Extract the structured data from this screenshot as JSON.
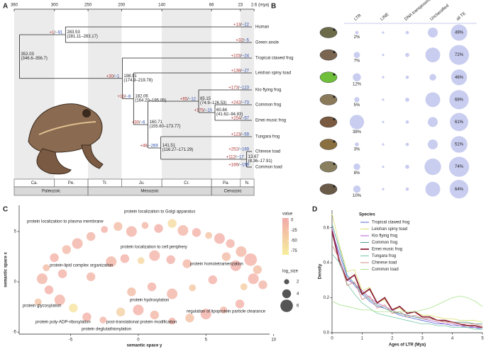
{
  "panel_labels": [
    "A",
    "B",
    "C",
    "D"
  ],
  "tree": {
    "time_ticks": [
      360,
      300,
      250,
      200,
      140,
      66,
      23,
      2.6
    ],
    "time_unit": "(mya)",
    "tips": [
      "Human",
      "Green anole",
      "Tropical clawed frog",
      "Leishan spiny toad",
      "Kio flying frog",
      "Common frog",
      "Emei music frog",
      "Tungara frog",
      "Chinese toad",
      "Common toad"
    ],
    "tip_colors": [
      "#222",
      "#222",
      "#222",
      "#222",
      "#222",
      "#222",
      "#c0392b",
      "#222",
      "#222",
      "#222"
    ],
    "nodes": [
      {
        "age": 352.03,
        "ci": "(346.6–356.7)"
      },
      {
        "age": 283.53,
        "ci": "(281.11–283.17)"
      },
      {
        "age": 198.91,
        "ci": "(174.9–219.78)"
      },
      {
        "age": 182.06,
        "ci": "(164.20–195.05)"
      },
      {
        "age": 160.71,
        "ci": "(155.60–173.77)"
      },
      {
        "age": 85.15,
        "ci": "(74.9–126.53)"
      },
      {
        "age": 60.84,
        "ci": "(41.62–94.83)"
      },
      {
        "age": 141.51,
        "ci": "(116.27–171.29)"
      },
      {
        "age": 13.67,
        "ci": "(8.36–17.91)"
      }
    ],
    "separator": "/",
    "gain_color": "#b03030",
    "loss_color": "#2f4fb0",
    "changes": [
      {
        "gain": "+13",
        "loss": "−22"
      },
      {
        "gain": "+32",
        "loss": "−5"
      },
      {
        "gain": "+1",
        "loss": "−91"
      },
      {
        "gain": "+103",
        "loss": "−24"
      },
      {
        "gain": "+30",
        "loss": "−1"
      },
      {
        "gain": "+138",
        "loss": "−27"
      },
      {
        "gain": "+13",
        "loss": "−6"
      },
      {
        "gain": "+173",
        "loss": "−123"
      },
      {
        "gain": "+65",
        "loss": "−12"
      },
      {
        "gain": "+242",
        "loss": "−73"
      },
      {
        "gain": "+175",
        "loss": "−10"
      },
      {
        "gain": "+254",
        "loss": "−57"
      },
      {
        "gain": "+30",
        "loss": "−6"
      },
      {
        "gain": "+123",
        "loss": "−59"
      },
      {
        "gain": "+48",
        "loss": "−269"
      },
      {
        "gain": "+252",
        "loss": "−169"
      },
      {
        "gain": "+112",
        "loss": "−17"
      },
      {
        "gain": "+186",
        "loss": "−169"
      }
    ],
    "periods": [
      "Ca.",
      "Pe.",
      "Tr.",
      "Ju.",
      "Cr.",
      "Pa.",
      "N."
    ],
    "eras": [
      "Paleozoic",
      "Mesozoic",
      "Cenozoic"
    ]
  },
  "chart_data": [
    {
      "type": "bubble",
      "series": [
        {
          "name": "LTR",
          "color": "#c9cdef",
          "values": [
            2,
            7,
            12,
            5,
            38,
            3,
            8,
            10
          ],
          "value_labels": [
            "2%",
            "7%",
            "12%",
            "5%",
            "38%",
            "3%",
            "8%",
            "10%"
          ]
        },
        {
          "name": "LINE",
          "color": "#c9cdef",
          "values": [
            1,
            1,
            1,
            1,
            1,
            1,
            1,
            1
          ]
        },
        {
          "name": "DNA transposons",
          "color": "#c9cdef",
          "values": [
            2,
            3,
            2,
            3,
            2,
            2,
            3,
            2
          ]
        },
        {
          "name": "Unclassified",
          "color": "#c9cdef",
          "values": [
            18,
            40,
            8,
            40,
            18,
            18,
            50,
            40
          ]
        },
        {
          "name": "all TE",
          "color": "#c9cdef",
          "values": [
            49,
            72,
            46,
            68,
            61,
            51,
            74,
            64
          ],
          "value_labels": [
            "49%",
            "72%",
            "46%",
            "68%",
            "61%",
            "51%",
            "74%",
            "64%"
          ]
        }
      ]
    },
    {
      "type": "scatter",
      "x_label": "semantic space y",
      "y_label": "semantic space x",
      "xlim": [
        -8.8,
        9.7
      ],
      "ylim": [
        -5.2,
        7.6
      ],
      "xticks": [
        -5,
        0,
        5,
        10
      ],
      "yticks": [
        -5,
        0,
        5
      ],
      "x": [
        -3.5,
        -2.5,
        -1.5,
        -0.5,
        0.5,
        1.5,
        2.5,
        3.3,
        4.3,
        5.2,
        6,
        6.8,
        7.6,
        8.3,
        8.8,
        8.5,
        7.8,
        9.2,
        7.2,
        6.5,
        7.5,
        6.3,
        5,
        3.8,
        2.5,
        1.2,
        0,
        -1.3,
        -2.6,
        -3.8,
        -4.8,
        -5.8,
        -6.6,
        -7.1,
        -6.8,
        -6.2,
        -5.3,
        -4.5,
        -7.4,
        -5.6,
        -2,
        -1,
        0.2,
        1.2,
        2.4,
        3.6,
        -0.5,
        1,
        2.5,
        4,
        5.5,
        -3.5
      ],
      "values": [
        4.5,
        5.2,
        5.5,
        5,
        5.6,
        5.3,
        5.8,
        5.1,
        4.9,
        4.6,
        4.3,
        3.8,
        3,
        2.2,
        1.2,
        0.3,
        -0.5,
        -0.3,
        1.6,
        2.5,
        -2.2,
        -2.8,
        -3.2,
        -3.6,
        -3.9,
        -3.3,
        -2.8,
        -3,
        -3.8,
        -3.5,
        -2.6,
        -1.8,
        -0.8,
        0.3,
        1.4,
        2.4,
        3.2,
        3.8,
        -2,
        0.8,
        2,
        2.3,
        2.1,
        2.6,
        2.2,
        1.8,
        -1,
        -0.5,
        -1.2,
        -0.6,
        0.2,
        0.5
      ],
      "color_values": [
        -10,
        -5,
        -20,
        -8,
        -15,
        -3,
        -60,
        -12,
        -6,
        -30,
        -4,
        -9,
        -14,
        -5,
        -22,
        -7,
        -40,
        -10,
        -3,
        -18,
        -6,
        -12,
        -4,
        -25,
        -8,
        -15,
        -5,
        -45,
        -10,
        -7,
        -70,
        -9,
        -4,
        -11,
        -20,
        -6,
        -16,
        -8,
        -30,
        -5,
        -12,
        -6,
        -55,
        -9,
        -4,
        -14,
        -20,
        -7,
        -11,
        -35,
        -5,
        -10
      ],
      "sizes": [
        4,
        3,
        4,
        5,
        3,
        4,
        4,
        5,
        4,
        3,
        5,
        4,
        5,
        6,
        4,
        5,
        3,
        4,
        5,
        4,
        4,
        3,
        5,
        4,
        3,
        4,
        5,
        4,
        3,
        4,
        4,
        5,
        4,
        5,
        3,
        4,
        4,
        5,
        3,
        4,
        5,
        4,
        3,
        5,
        4,
        4,
        4,
        4,
        5,
        3,
        4,
        4
      ],
      "color_title": "value",
      "colorlim": [
        -85,
        5
      ],
      "color_low": "#f6ee9c",
      "color_high": "#f2a9a9",
      "color_ticks": [
        0,
        -25,
        -50,
        -75
      ],
      "size_title": "log_size",
      "size_ticks": [
        2,
        4,
        6
      ],
      "annotations": [
        "protein localization to Golgi apparatus",
        "protein localization to plasma membrane",
        "protein localization to cell periphery",
        "protein-lipid complex organization",
        "protein homotetramerization",
        "protein hydroxylation",
        "protein glycosylation",
        "regulation of lipoprotein particle clearance",
        "post-translational protein modification",
        "protein poly-ADP-ribosylation",
        "protein deglutathionylation"
      ]
    },
    {
      "type": "line",
      "x_label": "Ages of LTR (Mya)",
      "y_label": "Density",
      "legend_title": "Species",
      "legend": "upper-right",
      "xlim": [
        0,
        5
      ],
      "ylim": [
        0,
        0.7
      ],
      "xticks": [
        0,
        1,
        2,
        3,
        4,
        5
      ],
      "yticks": [
        {
          "value": 0,
          "label": "0.0"
        },
        0.2,
        0.4,
        0.6
      ],
      "x": [
        0,
        0.25,
        0.5,
        0.75,
        1,
        1.25,
        1.5,
        1.75,
        2,
        2.25,
        2.5,
        2.75,
        3,
        3.25,
        3.5,
        3.75,
        4,
        4.25,
        4.5,
        4.75,
        5
      ],
      "series": [
        {
          "name": "Tropical clawed frog",
          "color": "#5468d4",
          "width": 0.8,
          "values": [
            0.58,
            0.45,
            0.32,
            0.27,
            0.22,
            0.18,
            0.15,
            0.14,
            0.12,
            0.1,
            0.09,
            0.08,
            0.07,
            0.06,
            0.05,
            0.05,
            0.04,
            0.04,
            0.03,
            0.03,
            0.02
          ]
        },
        {
          "name": "Leishan spiny toad",
          "color": "#d8df6a",
          "width": 0.8,
          "values": [
            0.68,
            0.5,
            0.35,
            0.36,
            0.24,
            0.26,
            0.17,
            0.19,
            0.13,
            0.14,
            0.11,
            0.12,
            0.1,
            0.1,
            0.09,
            0.08,
            0.08,
            0.07,
            0.07,
            0.07,
            0.06
          ]
        },
        {
          "name": "Kio flying frog",
          "color": "#ad5fd2",
          "width": 0.8,
          "values": [
            0.6,
            0.42,
            0.3,
            0.28,
            0.24,
            0.2,
            0.17,
            0.15,
            0.13,
            0.11,
            0.1,
            0.09,
            0.08,
            0.07,
            0.06,
            0.05,
            0.05,
            0.04,
            0.04,
            0.03,
            0.03
          ]
        },
        {
          "name": "Common frog",
          "color": "#4e9e8e",
          "width": 0.8,
          "values": [
            0.62,
            0.48,
            0.33,
            0.28,
            0.23,
            0.19,
            0.16,
            0.14,
            0.12,
            0.11,
            0.1,
            0.09,
            0.08,
            0.08,
            0.07,
            0.07,
            0.06,
            0.06,
            0.06,
            0.05,
            0.05
          ]
        },
        {
          "name": "Emei music frog",
          "color": "#8e2435",
          "width": 1.8,
          "values": [
            0.58,
            0.4,
            0.3,
            0.33,
            0.22,
            0.25,
            0.17,
            0.2,
            0.13,
            0.15,
            0.11,
            0.12,
            0.09,
            0.09,
            0.07,
            0.07,
            0.06,
            0.05,
            0.04,
            0.04,
            0.03
          ]
        },
        {
          "name": "Tungara frog",
          "color": "#76c7a8",
          "width": 0.8,
          "values": [
            0.45,
            0.4,
            0.28,
            0.22,
            0.17,
            0.14,
            0.11,
            0.1,
            0.09,
            0.08,
            0.07,
            0.06,
            0.05,
            0.05,
            0.04,
            0.04,
            0.03,
            0.03,
            0.03,
            0.02,
            0.02
          ]
        },
        {
          "name": "Chinese toad",
          "color": "#d08c80",
          "width": 0.8,
          "values": [
            0.5,
            0.42,
            0.27,
            0.29,
            0.19,
            0.21,
            0.14,
            0.16,
            0.11,
            0.12,
            0.09,
            0.1,
            0.08,
            0.08,
            0.07,
            0.06,
            0.06,
            0.05,
            0.05,
            0.05,
            0.04
          ]
        },
        {
          "name": "Common toad",
          "color": "#a8e38a",
          "width": 0.8,
          "values": [
            0.18,
            0.16,
            0.15,
            0.14,
            0.13,
            0.13,
            0.12,
            0.12,
            0.12,
            0.12,
            0.12,
            0.12,
            0.13,
            0.14,
            0.16,
            0.18,
            0.2,
            0.21,
            0.2,
            0.18,
            0.15
          ]
        }
      ]
    }
  ]
}
